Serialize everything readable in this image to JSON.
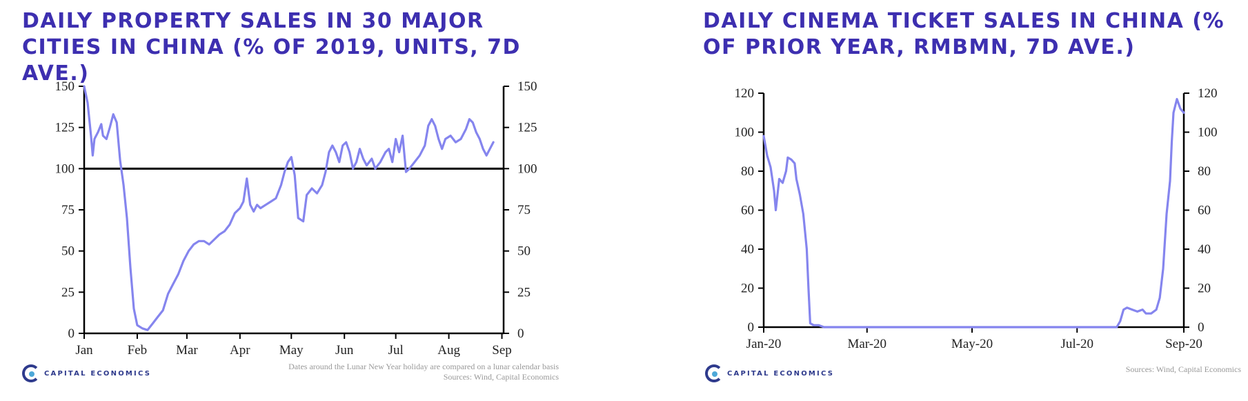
{
  "brand": {
    "name": "CAPITAL ECONOMICS"
  },
  "colors": {
    "title": "#3d2fb0",
    "series": "#8585ee",
    "axis": "#000000"
  },
  "left": {
    "note": "Dates around the Lunar New Year holiday are compared on a lunar calendar basis",
    "sources": "Sources: Wind, Capital Economics"
  },
  "right": {
    "sources": "Sources: Wind, Capital Economics"
  },
  "chart_data": [
    {
      "type": "line",
      "title": "DAILY PROPERTY SALES IN 30 MAJOR CITIES IN CHINA (% OF 2019, UNITS, 7D AVE.)",
      "xlabel": "",
      "ylabel": "",
      "ylim": [
        0,
        150
      ],
      "yticks": [
        0,
        25,
        50,
        75,
        100,
        125,
        150
      ],
      "y_right_axis": true,
      "xlim": [
        0,
        245
      ],
      "xticks": [
        {
          "label": "Jan",
          "x": 0
        },
        {
          "label": "Feb",
          "x": 31
        },
        {
          "label": "Mar",
          "x": 60
        },
        {
          "label": "Apr",
          "x": 91
        },
        {
          "label": "May",
          "x": 121
        },
        {
          "label": "Jun",
          "x": 152
        },
        {
          "label": "Jul",
          "x": 182
        },
        {
          "label": "Aug",
          "x": 213
        },
        {
          "label": "Sep",
          "x": 244
        }
      ],
      "reference_line": 100,
      "series": [
        {
          "name": "Property sales",
          "points": [
            [
              0,
              150
            ],
            [
              2,
              140
            ],
            [
              4,
              120
            ],
            [
              5,
              108
            ],
            [
              6,
              118
            ],
            [
              8,
              122
            ],
            [
              10,
              127
            ],
            [
              11,
              120
            ],
            [
              13,
              118
            ],
            [
              15,
              125
            ],
            [
              17,
              133
            ],
            [
              19,
              128
            ],
            [
              21,
              105
            ],
            [
              23,
              90
            ],
            [
              25,
              70
            ],
            [
              27,
              40
            ],
            [
              29,
              15
            ],
            [
              31,
              5
            ],
            [
              34,
              3
            ],
            [
              37,
              2
            ],
            [
              40,
              6
            ],
            [
              43,
              10
            ],
            [
              46,
              14
            ],
            [
              49,
              24
            ],
            [
              52,
              30
            ],
            [
              55,
              36
            ],
            [
              58,
              44
            ],
            [
              61,
              50
            ],
            [
              64,
              54
            ],
            [
              67,
              56
            ],
            [
              70,
              56
            ],
            [
              73,
              54
            ],
            [
              76,
              57
            ],
            [
              79,
              60
            ],
            [
              82,
              62
            ],
            [
              85,
              66
            ],
            [
              88,
              73
            ],
            [
              91,
              76
            ],
            [
              93,
              80
            ],
            [
              95,
              94
            ],
            [
              97,
              78
            ],
            [
              99,
              74
            ],
            [
              101,
              78
            ],
            [
              103,
              76
            ],
            [
              106,
              78
            ],
            [
              109,
              80
            ],
            [
              112,
              82
            ],
            [
              115,
              90
            ],
            [
              117,
              98
            ],
            [
              119,
              104
            ],
            [
              121,
              107
            ],
            [
              123,
              96
            ],
            [
              125,
              70
            ],
            [
              128,
              68
            ],
            [
              130,
              84
            ],
            [
              133,
              88
            ],
            [
              136,
              85
            ],
            [
              139,
              90
            ],
            [
              141,
              98
            ],
            [
              143,
              110
            ],
            [
              145,
              114
            ],
            [
              147,
              110
            ],
            [
              149,
              104
            ],
            [
              151,
              114
            ],
            [
              153,
              116
            ],
            [
              155,
              110
            ],
            [
              157,
              100
            ],
            [
              159,
              104
            ],
            [
              161,
              112
            ],
            [
              163,
              106
            ],
            [
              165,
              102
            ],
            [
              168,
              106
            ],
            [
              170,
              100
            ],
            [
              173,
              104
            ],
            [
              176,
              110
            ],
            [
              178,
              112
            ],
            [
              180,
              104
            ],
            [
              182,
              118
            ],
            [
              184,
              110
            ],
            [
              186,
              120
            ],
            [
              188,
              98
            ],
            [
              190,
              100
            ],
            [
              193,
              104
            ],
            [
              196,
              108
            ],
            [
              199,
              114
            ],
            [
              201,
              126
            ],
            [
              203,
              130
            ],
            [
              205,
              126
            ],
            [
              207,
              118
            ],
            [
              209,
              112
            ],
            [
              211,
              118
            ],
            [
              214,
              120
            ],
            [
              217,
              116
            ],
            [
              220,
              118
            ],
            [
              223,
              124
            ],
            [
              225,
              130
            ],
            [
              227,
              128
            ],
            [
              229,
              122
            ],
            [
              231,
              118
            ],
            [
              233,
              112
            ],
            [
              235,
              108
            ],
            [
              237,
              112
            ],
            [
              239,
              116
            ]
          ]
        }
      ]
    },
    {
      "type": "line",
      "title": "DAILY CINEMA TICKET SALES IN CHINA (% OF PRIOR YEAR, RMBMN, 7D AVE.)",
      "xlabel": "",
      "ylabel": "",
      "ylim": [
        0,
        120
      ],
      "yticks": [
        0,
        20,
        40,
        60,
        80,
        100,
        120
      ],
      "y_right_axis": true,
      "xlim": [
        0,
        244
      ],
      "xticks": [
        {
          "label": "Jan-20",
          "x": 0
        },
        {
          "label": "Mar-20",
          "x": 60
        },
        {
          "label": "May-20",
          "x": 121
        },
        {
          "label": "Jul-20",
          "x": 182
        },
        {
          "label": "Sep-20",
          "x": 244
        }
      ],
      "reference_line": null,
      "series": [
        {
          "name": "Cinema ticket sales",
          "points": [
            [
              0,
              98
            ],
            [
              2,
              88
            ],
            [
              4,
              82
            ],
            [
              6,
              70
            ],
            [
              7,
              60
            ],
            [
              9,
              76
            ],
            [
              11,
              74
            ],
            [
              13,
              80
            ],
            [
              14,
              87
            ],
            [
              16,
              86
            ],
            [
              18,
              84
            ],
            [
              19,
              76
            ],
            [
              21,
              68
            ],
            [
              23,
              58
            ],
            [
              25,
              40
            ],
            [
              26,
              20
            ],
            [
              27,
              2
            ],
            [
              29,
              1
            ],
            [
              32,
              1
            ],
            [
              35,
              0
            ],
            [
              60,
              0
            ],
            [
              100,
              0
            ],
            [
              150,
              0
            ],
            [
              195,
              0
            ],
            [
              205,
              0
            ],
            [
              207,
              3
            ],
            [
              209,
              9
            ],
            [
              211,
              10
            ],
            [
              214,
              9
            ],
            [
              217,
              8
            ],
            [
              220,
              9
            ],
            [
              222,
              7
            ],
            [
              225,
              7
            ],
            [
              228,
              9
            ],
            [
              230,
              15
            ],
            [
              232,
              30
            ],
            [
              234,
              58
            ],
            [
              236,
              75
            ],
            [
              237,
              95
            ],
            [
              238,
              110
            ],
            [
              240,
              117
            ],
            [
              242,
              112
            ],
            [
              244,
              110
            ]
          ]
        }
      ]
    }
  ]
}
